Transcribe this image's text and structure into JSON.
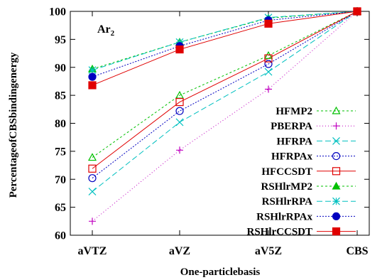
{
  "chart_data": {
    "type": "line",
    "title": "",
    "annotation": "Ar",
    "annotation_subscript": "2",
    "xlabel": "One-particlebasis",
    "ylabel": "PercentageofCBSbindingenergy",
    "categories": [
      "aVTZ",
      "aVZ",
      "aV5Z",
      "CBS"
    ],
    "ylim": [
      60,
      100
    ],
    "yticks": [
      "60",
      "65",
      "70",
      "75",
      "80",
      "85",
      "90",
      "95",
      "100"
    ],
    "grid": false,
    "legend_position": "center-right",
    "series": [
      {
        "name": "HFMP2",
        "values": [
          73.9,
          85.0,
          92.1,
          100
        ],
        "color": "#00c000",
        "dash": "3,3",
        "marker": "triangle-open"
      },
      {
        "name": "PBERPA",
        "values": [
          62.5,
          75.2,
          86.1,
          100
        ],
        "color": "#c000c0",
        "dash": "1,3",
        "marker": "plus"
      },
      {
        "name": "HFRPA",
        "values": [
          67.8,
          80.2,
          89.2,
          100
        ],
        "color": "#00c0c0",
        "dash": "8,4",
        "marker": "cross"
      },
      {
        "name": "HFRPAx",
        "values": [
          70.2,
          82.2,
          90.6,
          100
        ],
        "color": "#0000c0",
        "dash": "2,2",
        "marker": "circle-open"
      },
      {
        "name": "HFCCSDT",
        "values": [
          71.9,
          83.8,
          91.6,
          100
        ],
        "color": "#e00000",
        "dash": "",
        "marker": "square-open"
      },
      {
        "name": "RSHlrMP2",
        "values": [
          89.7,
          94.5,
          98.8,
          100
        ],
        "color": "#00c000",
        "dash": "3,3",
        "marker": "triangle-filled"
      },
      {
        "name": "RSHlrRPA",
        "values": [
          89.5,
          94.5,
          98.9,
          100
        ],
        "color": "#00c0c0",
        "dash": "8,4",
        "marker": "star"
      },
      {
        "name": "RSHlrRPAx",
        "values": [
          88.3,
          93.8,
          98.4,
          100
        ],
        "color": "#0000c0",
        "dash": "2,2",
        "marker": "circle-filled"
      },
      {
        "name": "RSHlrCCSDT",
        "values": [
          86.8,
          93.2,
          97.8,
          100
        ],
        "color": "#e00000",
        "dash": "",
        "marker": "square-filled"
      }
    ]
  }
}
